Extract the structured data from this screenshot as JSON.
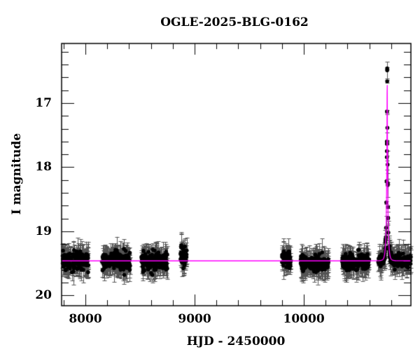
{
  "chart_data": {
    "type": "scatter",
    "title": "OGLE-2025-BLG-0162",
    "xlabel": "HJD - 2450000",
    "ylabel": "I magnitude",
    "xlim": [
      7782,
      10980
    ],
    "ylim": [
      20.16,
      16.07
    ],
    "y_inverted": true,
    "x_major_ticks": [
      8000,
      9000,
      10000
    ],
    "x_minor_step": 200,
    "y_major_ticks": [
      17,
      18,
      19,
      20
    ],
    "y_minor_step": 0.2,
    "grid": false,
    "legend": null,
    "colors": {
      "points": "#000000",
      "errorbars": "#555555",
      "model": "#ff00ff",
      "frame": "#000000"
    },
    "model": {
      "name": "microlensing model",
      "baseline_mag": 19.46,
      "t0": 10763,
      "peak_mag": 16.45,
      "tE_like_width": 14
    },
    "observing_seasons": [
      {
        "x_start": 7790,
        "x_end": 8030,
        "mean_mag": 19.46,
        "scatter": 0.15
      },
      {
        "x_start": 8150,
        "x_end": 8410,
        "mean_mag": 19.46,
        "scatter": 0.15
      },
      {
        "x_start": 8510,
        "x_end": 8750,
        "mean_mag": 19.46,
        "scatter": 0.15
      },
      {
        "x_start": 8870,
        "x_end": 8930,
        "mean_mag": 19.4,
        "scatter": 0.15
      },
      {
        "x_start": 9800,
        "x_end": 9880,
        "mean_mag": 19.45,
        "scatter": 0.15
      },
      {
        "x_start": 9970,
        "x_end": 10230,
        "mean_mag": 19.5,
        "scatter": 0.12
      },
      {
        "x_start": 10350,
        "x_end": 10600,
        "mean_mag": 19.48,
        "scatter": 0.12
      },
      {
        "x_start": 10680,
        "x_end": 10980,
        "mean_mag": null,
        "scatter": 0.1
      }
    ],
    "highlight_points": [
      {
        "x": 10763,
        "y": 16.46
      },
      {
        "x": 10763,
        "y": 16.66
      },
      {
        "x": 10761,
        "y": 17.13
      },
      {
        "x": 10760,
        "y": 17.6
      },
      {
        "x": 10758,
        "y": 18.22
      },
      {
        "x": 10768,
        "y": 18.25
      },
      {
        "x": 10755,
        "y": 18.55
      },
      {
        "x": 10770,
        "y": 18.62
      }
    ]
  }
}
